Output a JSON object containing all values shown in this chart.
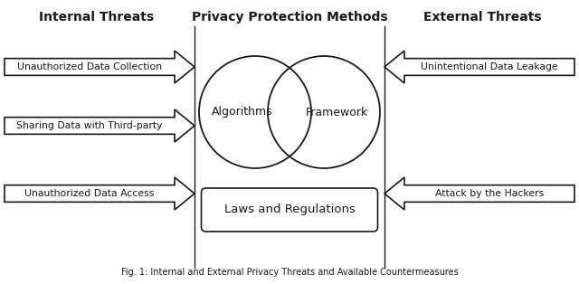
{
  "title_left": "Internal Threats",
  "title_center": "Privacy Protection Methods",
  "title_right": "External Threats",
  "left_arrows": [
    "Unauthorized Data Collection",
    "Sharing Data with Third-party",
    "Unauthorized Data Access"
  ],
  "right_arrows_top": "Unintentional Data Leakage",
  "right_arrows_bot": "Attack by the Hackers",
  "venn_left_label": "Algorithms",
  "venn_right_label": "Framework",
  "box_label": "Laws and Regulations",
  "caption": "Fig. 1: Internal and External Privacy Threats and Available Countermeasures",
  "bg_color": "#ffffff",
  "line_color": "#1a1a1a",
  "text_color": "#1a1a1a",
  "fig_width": 6.4,
  "fig_height": 3.14,
  "dpi": 100
}
